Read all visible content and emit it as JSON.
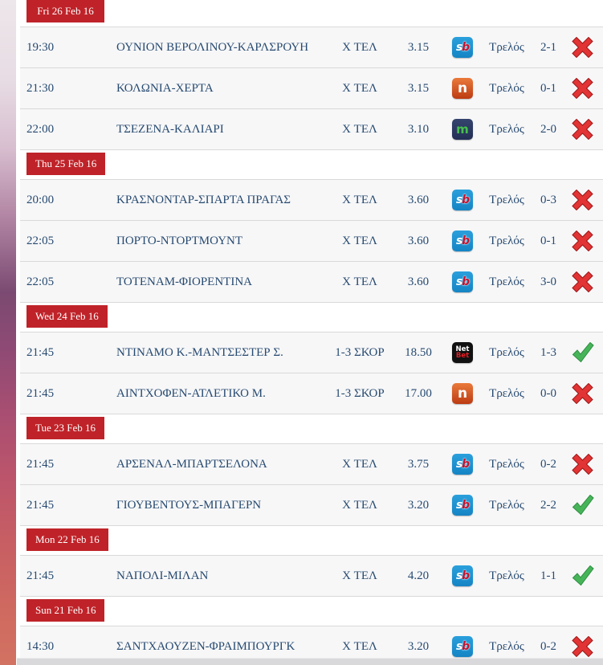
{
  "colors": {
    "date_banner_bg": "#bf2329",
    "date_banner_text": "#ffffff",
    "row_text": "#274a70",
    "row_bg": "#f7f7f8",
    "win_green": "#47b45a",
    "loss_red": "#e23434"
  },
  "icons": {
    "result_win": "green-check-icon",
    "result_loss": "red-cross-icon"
  },
  "bookmakers": {
    "sb": {
      "name": "sb-bookmaker-icon",
      "glyphs": [
        "s",
        "b"
      ]
    },
    "n": {
      "name": "n-bookmaker-icon",
      "glyphs": [
        "n"
      ]
    },
    "m": {
      "name": "m-bookmaker-icon",
      "glyphs": [
        "m"
      ]
    },
    "netbet": {
      "name": "netbet-bookmaker-icon",
      "glyphs": [
        "Net",
        "Bet"
      ]
    }
  },
  "sections": [
    {
      "date": "Fri 26 Feb 16",
      "rows": [
        {
          "time": "19:30",
          "match": "ΟΥΝΙΟΝ ΒΕΡΟΛΙΝΟΥ-ΚΑΡΛΣΡΟΥΗ",
          "bet": "X ΤΕΛ",
          "odds": "3.15",
          "bookmaker": "sb",
          "tipster": "Τρελός",
          "score": "2-1",
          "result": "loss"
        },
        {
          "time": "21:30",
          "match": "ΚΟΛΩΝΙΑ-ΧΕΡΤΑ",
          "bet": "X ΤΕΛ",
          "odds": "3.15",
          "bookmaker": "n",
          "tipster": "Τρελός",
          "score": "0-1",
          "result": "loss"
        },
        {
          "time": "22:00",
          "match": "ΤΣΕΖΕΝΑ-ΚΑΛΙΑΡΙ",
          "bet": "X ΤΕΛ",
          "odds": "3.10",
          "bookmaker": "m",
          "tipster": "Τρελός",
          "score": "2-0",
          "result": "loss"
        }
      ]
    },
    {
      "date": "Thu 25 Feb 16",
      "rows": [
        {
          "time": "20:00",
          "match": "ΚΡΑΣΝΟΝΤΑΡ-ΣΠΑΡΤΑ ΠΡΑΓΑΣ",
          "bet": "X ΤΕΛ",
          "odds": "3.60",
          "bookmaker": "sb",
          "tipster": "Τρελός",
          "score": "0-3",
          "result": "loss"
        },
        {
          "time": "22:05",
          "match": "ΠΟΡΤΟ-ΝΤΟΡΤΜΟΥΝΤ",
          "bet": "X ΤΕΛ",
          "odds": "3.60",
          "bookmaker": "sb",
          "tipster": "Τρελός",
          "score": "0-1",
          "result": "loss"
        },
        {
          "time": "22:05",
          "match": "ΤΟΤΕΝΑΜ-ΦΙΟΡΕΝΤΙΝΑ",
          "bet": "X ΤΕΛ",
          "odds": "3.60",
          "bookmaker": "sb",
          "tipster": "Τρελός",
          "score": "3-0",
          "result": "loss"
        }
      ]
    },
    {
      "date": "Wed 24 Feb 16",
      "rows": [
        {
          "time": "21:45",
          "match": "ΝΤΙΝΑΜΟ Κ.-ΜΑΝΤΣΕΣΤΕΡ Σ.",
          "bet": "1-3 ΣΚΟΡ",
          "odds": "18.50",
          "bookmaker": "netbet",
          "tipster": "Τρελός",
          "score": "1-3",
          "result": "win"
        },
        {
          "time": "21:45",
          "match": "ΑΙΝΤΧΟΦΕΝ-ΑΤΛΕΤΙΚΟ Μ.",
          "bet": "1-3 ΣΚΟΡ",
          "odds": "17.00",
          "bookmaker": "n",
          "tipster": "Τρελός",
          "score": "0-0",
          "result": "loss"
        }
      ]
    },
    {
      "date": "Tue 23 Feb 16",
      "rows": [
        {
          "time": "21:45",
          "match": "ΑΡΣΕΝΑΛ-ΜΠΑΡΤΣΕΛΟΝΑ",
          "bet": "X ΤΕΛ",
          "odds": "3.75",
          "bookmaker": "sb",
          "tipster": "Τρελός",
          "score": "0-2",
          "result": "loss"
        },
        {
          "time": "21:45",
          "match": "ΓΙΟΥΒΕΝΤΟΥΣ-ΜΠΑΓΕΡΝ",
          "bet": "X ΤΕΛ",
          "odds": "3.20",
          "bookmaker": "sb",
          "tipster": "Τρελός",
          "score": "2-2",
          "result": "win"
        }
      ]
    },
    {
      "date": "Mon 22 Feb 16",
      "rows": [
        {
          "time": "21:45",
          "match": "ΝΑΠΟΛΙ-ΜΙΛΑΝ",
          "bet": "X ΤΕΛ",
          "odds": "4.20",
          "bookmaker": "sb",
          "tipster": "Τρελός",
          "score": "1-1",
          "result": "win"
        }
      ]
    },
    {
      "date": "Sun 21 Feb 16",
      "rows": [
        {
          "time": "14:30",
          "match": "ΣΑΝΤΧΑΟΥΖΕΝ-ΦΡΑΙΜΠΟΥΡΓΚ",
          "bet": "X ΤΕΛ",
          "odds": "3.20",
          "bookmaker": "sb",
          "tipster": "Τρελός",
          "score": "0-2",
          "result": "loss"
        }
      ]
    }
  ]
}
